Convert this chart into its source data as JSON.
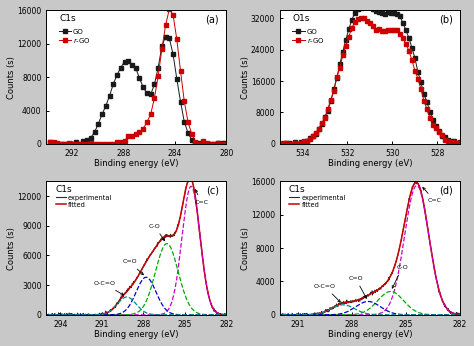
{
  "fig_bg": "#c8c8c8",
  "panel_bg": "#ffffff",
  "panel_a": {
    "title": "C1s",
    "label": "(a)",
    "xlabel": "Binding energy (eV)",
    "ylabel": "Counts (s)",
    "ylim": [
      0,
      16000
    ],
    "yticks": [
      0,
      4000,
      8000,
      12000,
      16000
    ],
    "xticks": [
      292,
      288,
      284,
      280
    ]
  },
  "panel_b": {
    "title": "O1s",
    "label": "(b)",
    "xlabel": "Binding energy (eV)",
    "ylabel": "Counts (s)",
    "ylim": [
      0,
      34000
    ],
    "yticks": [
      0,
      8000,
      16000,
      24000,
      32000
    ],
    "xticks": [
      534,
      532,
      530,
      528
    ]
  },
  "panel_c": {
    "title": "C1s",
    "label": "(c)",
    "xlabel": "Binding energy (eV)",
    "ylabel": "Counts (s)",
    "ylim": [
      0,
      13500
    ],
    "yticks": [
      0,
      3000,
      6000,
      9000,
      12000
    ],
    "xticks": [
      294,
      291,
      288,
      285,
      282
    ]
  },
  "panel_d": {
    "title": "C1s",
    "label": "(d)",
    "xlabel": "Binding energy (eV)",
    "ylabel": "Counts (s)",
    "ylim": [
      0,
      16000
    ],
    "yticks": [
      0,
      4000,
      8000,
      12000,
      16000
    ],
    "xticks": [
      291,
      288,
      285,
      282
    ]
  },
  "go_color": "#1a1a1a",
  "rgo_color": "#cc0000",
  "exp_color": "#2a2a2a",
  "fitted_color": "#cc0000",
  "cc_color": "#cc00cc",
  "co_color": "#00aa00",
  "ceqo_color": "#0000cc",
  "ocoo_color": "#008888"
}
